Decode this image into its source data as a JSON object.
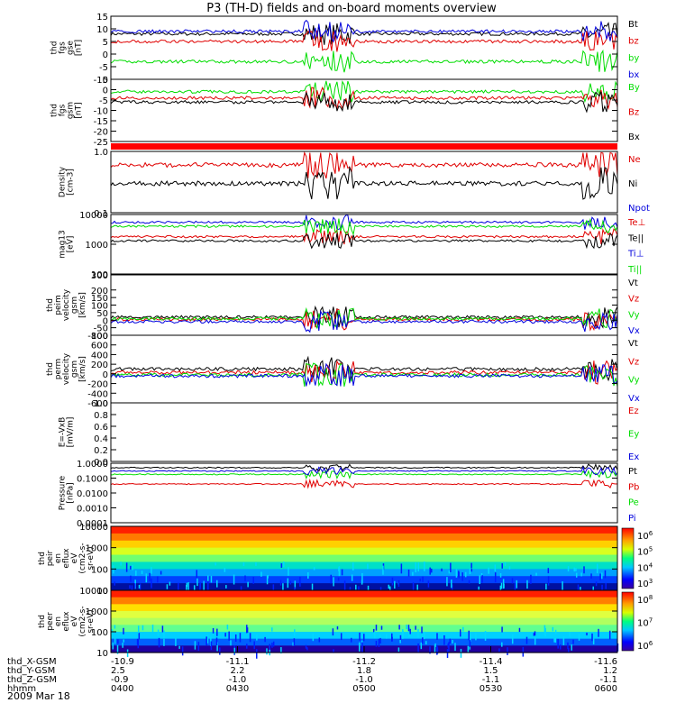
{
  "title": "P3 (TH-D) fields and on-board moments overview",
  "date": "2009 Mar 18",
  "colors": {
    "black": "#000000",
    "red": "#e00000",
    "green": "#00dd00",
    "blue": "#0000dd",
    "bar": "#ff0000"
  },
  "chart_data": {
    "type": "line",
    "x_axis": {
      "unit": "time",
      "range": [
        "0400",
        "0600"
      ],
      "rows": [
        {
          "label": "thd_X-GSM",
          "values": [
            "-10.9",
            "-11.1",
            "-11.2",
            "-11.4",
            "-11.6"
          ]
        },
        {
          "label": "thd_Y-GSM",
          "values": [
            "2.5",
            "2.2",
            "1.8",
            "1.5",
            "1.2"
          ]
        },
        {
          "label": "thd_Z-GSM",
          "values": [
            "-0.9",
            "-1.0",
            "-1.0",
            "-1.1",
            "-1.1"
          ]
        },
        {
          "label": "hhmm",
          "values": [
            "0400",
            "0430",
            "0500",
            "0530",
            "0600"
          ]
        }
      ]
    },
    "panels": [
      {
        "id": "fgs-gse",
        "ylabel": [
          "thd",
          "fgs",
          "gse",
          "[nT]"
        ],
        "ylim": [
          -10,
          15
        ],
        "scale": "linear",
        "ticks": [
          "15",
          "10",
          "5",
          "0",
          "-5",
          "-10"
        ],
        "series": [
          {
            "name": "Bt",
            "color": "#000000",
            "level": 8
          },
          {
            "name": "bz",
            "color": "#e00000",
            "level": 5
          },
          {
            "name": "by",
            "color": "#00dd00",
            "level": -3
          },
          {
            "name": "bx",
            "color": "#0000dd",
            "level": 9
          }
        ]
      },
      {
        "id": "fgs-gsm",
        "ylabel": [
          "thd",
          "fgs",
          "gsm",
          "[nT]"
        ],
        "ylim": [
          -25,
          5
        ],
        "scale": "linear",
        "ticks": [
          "5",
          "0",
          "-5",
          "-10",
          "-15",
          "-20",
          "-25"
        ],
        "series": [
          {
            "name": "By",
            "color": "#00dd00",
            "level": -1
          },
          {
            "name": "Bz",
            "color": "#e00000",
            "level": -4
          },
          {
            "name": "Bx",
            "color": "#000000",
            "level": -6
          }
        ]
      },
      {
        "id": "density",
        "ylabel": [
          "Density",
          "[cm-3]"
        ],
        "ylim": [
          0.1,
          1.0
        ],
        "scale": "log",
        "ticks": [
          "1.0",
          "0.1"
        ],
        "series": [
          {
            "name": "Ne",
            "color": "#e00000",
            "level": 0.6
          },
          {
            "name": "Ni",
            "color": "#000000",
            "level": 0.3
          },
          {
            "name": "Npot",
            "color": "#0000dd",
            "level": null
          }
        ]
      },
      {
        "id": "temperature",
        "ylabel": [
          "mag13",
          "[eV]"
        ],
        "ylim": [
          100,
          10000
        ],
        "scale": "log",
        "ticks": [
          "10000",
          "1000",
          "100"
        ],
        "series": [
          {
            "name": "Te⊥",
            "color": "#e00000",
            "level": 1800
          },
          {
            "name": "Te||",
            "color": "#000000",
            "level": 1300
          },
          {
            "name": "Ti⊥",
            "color": "#0000dd",
            "level": 5500
          },
          {
            "name": "Ti||",
            "color": "#00dd00",
            "level": 4000
          }
        ]
      },
      {
        "id": "vperp",
        "ylabel": [
          "thd",
          "peim",
          "velocity",
          "gsm",
          "[km/s]"
        ],
        "ylim": [
          -100,
          300
        ],
        "scale": "linear",
        "ticks": [
          "300",
          "200",
          "150",
          "100",
          "50",
          "0",
          "-50",
          "-100"
        ],
        "series": [
          {
            "name": "Vt",
            "color": "#000000",
            "level": 20
          },
          {
            "name": "Vz",
            "color": "#e00000",
            "level": 5
          },
          {
            "name": "Vy",
            "color": "#00dd00",
            "level": 10
          },
          {
            "name": "Vx",
            "color": "#0000dd",
            "level": -10
          }
        ]
      },
      {
        "id": "vpar",
        "ylabel": [
          "thd",
          "perm",
          "velocity",
          "gsm",
          "[km/s]"
        ],
        "ylim": [
          -600,
          800
        ],
        "scale": "linear",
        "ticks": [
          "800",
          "600",
          "400",
          "200",
          "0",
          "-200",
          "-400",
          "-600"
        ],
        "series": [
          {
            "name": "Vt",
            "color": "#000000",
            "level": 100
          },
          {
            "name": "Vz",
            "color": "#e00000",
            "level": 30
          },
          {
            "name": "Vy",
            "color": "#00dd00",
            "level": -20
          },
          {
            "name": "Vx",
            "color": "#0000dd",
            "level": -40
          }
        ]
      },
      {
        "id": "efield",
        "ylabel": [
          "E=-VxB",
          "[mV/m]"
        ],
        "ylim": [
          0.0,
          1.0
        ],
        "scale": "linear",
        "ticks": [
          "1.0",
          "0.8",
          "0.6",
          "0.4",
          "0.2",
          "0.0"
        ],
        "series": [
          {
            "name": "Ez",
            "color": "#e00000",
            "level": null
          },
          {
            "name": "Ey",
            "color": "#00dd00",
            "level": null
          },
          {
            "name": "Ex",
            "color": "#0000dd",
            "level": null
          }
        ]
      },
      {
        "id": "pressure",
        "ylabel": [
          "Pressure",
          "[nPa]"
        ],
        "ylim": [
          0.0001,
          1.0
        ],
        "scale": "log",
        "ticks": [
          "1.0000",
          "0.1000",
          "0.0100",
          "0.0010",
          "0.0001"
        ],
        "series": [
          {
            "name": "Pt",
            "color": "#000000",
            "level": 0.5
          },
          {
            "name": "Pb",
            "color": "#e00000",
            "level": 0.04
          },
          {
            "name": "Pe",
            "color": "#00dd00",
            "level": 0.18
          },
          {
            "name": "Pi",
            "color": "#0000dd",
            "level": 0.3
          }
        ]
      },
      {
        "id": "peir",
        "type": "heatmap",
        "ylabel": [
          "thd",
          "peir",
          "en",
          "eflux",
          "eV",
          "(cm2-s-",
          "sr-eV)"
        ],
        "ylim": [
          10,
          10000
        ],
        "scale": "log",
        "ticks": [
          "10000",
          "1000",
          "100",
          "10"
        ],
        "colorbar_ticks": [
          "10^6",
          "10^5",
          "10^4",
          "10^3"
        ],
        "crange": [
          1000,
          1000000
        ]
      },
      {
        "id": "peer",
        "type": "heatmap",
        "ylabel": [
          "thd",
          "peer",
          "en",
          "eflux",
          "eV",
          "(cm2-s-",
          "sr-eV)"
        ],
        "ylim": [
          10,
          10000
        ],
        "scale": "log",
        "ticks": [
          "10000",
          "1000",
          "100",
          "10"
        ],
        "colorbar_ticks": [
          "10^8",
          "10^7",
          "10^6"
        ],
        "crange": [
          1000000,
          100000000
        ]
      }
    ]
  }
}
